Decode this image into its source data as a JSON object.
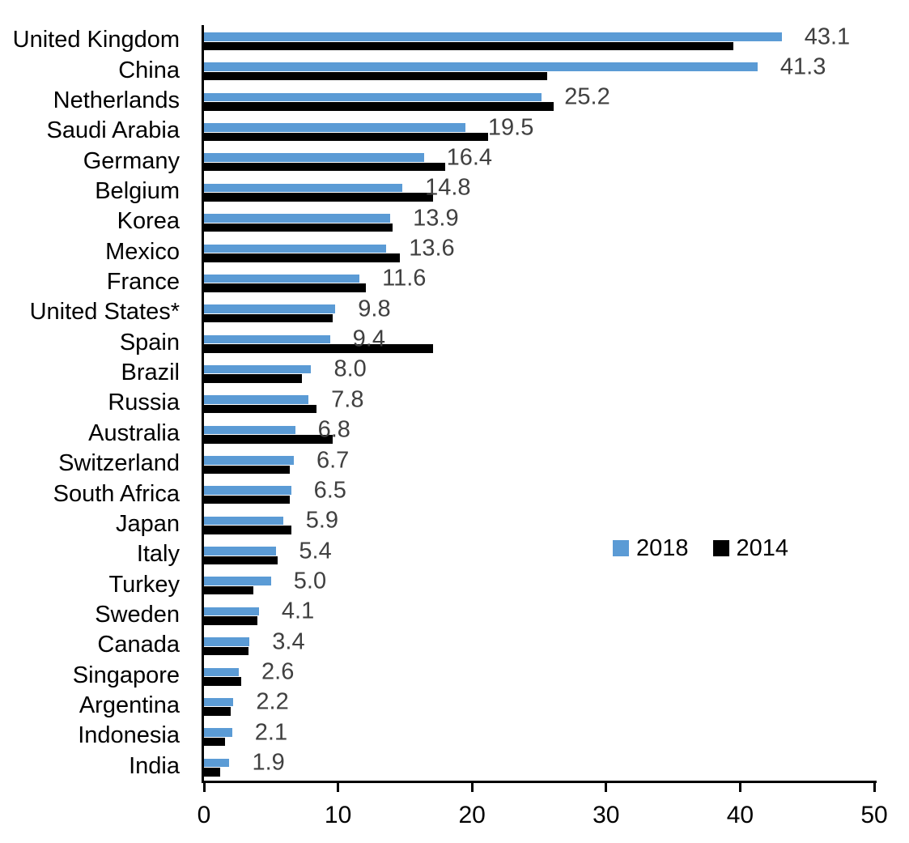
{
  "chart_data": {
    "type": "bar",
    "orientation": "horizontal",
    "title": "",
    "xlabel": "",
    "ylabel": "",
    "xlim": [
      0,
      50
    ],
    "x_ticks": [
      0,
      10,
      20,
      30,
      40,
      50
    ],
    "grid": false,
    "legend_position": "middle-right",
    "categories": [
      "United Kingdom",
      "China",
      "Netherlands",
      "Saudi Arabia",
      "Germany",
      "Belgium",
      "Korea",
      "Mexico",
      "France",
      "United States*",
      "Spain",
      "Brazil",
      "Russia",
      "Australia",
      "Switzerland",
      "South Africa",
      "Japan",
      "Italy",
      "Turkey",
      "Sweden",
      "Canada",
      "Singapore",
      "Argentina",
      "Indonesia",
      "India"
    ],
    "series": [
      {
        "name": "2018",
        "color": "#5B9BD5",
        "values": [
          43.1,
          41.3,
          25.2,
          19.5,
          16.4,
          14.8,
          13.9,
          13.6,
          11.6,
          9.8,
          9.4,
          8.0,
          7.8,
          6.8,
          6.7,
          6.5,
          5.9,
          5.4,
          5.0,
          4.1,
          3.4,
          2.6,
          2.2,
          2.1,
          1.9
        ]
      },
      {
        "name": "2014",
        "color": "#000000",
        "values": [
          39.5,
          25.6,
          26.1,
          21.2,
          18.0,
          17.1,
          14.1,
          14.6,
          12.1,
          9.6,
          17.1,
          7.3,
          8.4,
          9.6,
          6.4,
          6.4,
          6.5,
          5.5,
          3.7,
          4.0,
          3.3,
          2.8,
          2.0,
          1.6,
          1.2
        ]
      }
    ],
    "data_labels": [
      "43.1",
      "41.3",
      "25.2",
      "19.5",
      "16.4",
      "14.8",
      "13.9",
      "13.6",
      "11.6",
      "9.8",
      "9.4",
      "8.0",
      "7.8",
      "6.8",
      "6.7",
      "6.5",
      "5.9",
      "5.4",
      "5.0",
      "4.1",
      "3.4",
      "2.6",
      "2.2",
      "2.1",
      "1.9"
    ],
    "data_labels_series": "2018",
    "value_label_color": "#404040",
    "axis_color": "#000000"
  }
}
